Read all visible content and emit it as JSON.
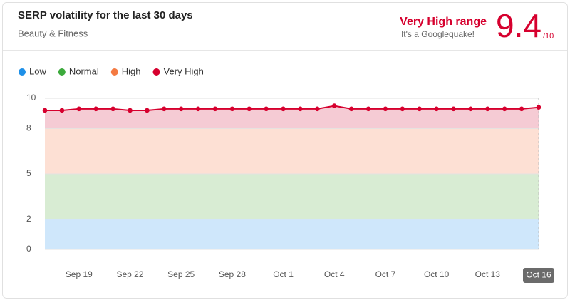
{
  "chart_data": {
    "type": "line",
    "title": "SERP volatility for the last 30 days",
    "subtitle": "Beauty & Fitness",
    "range_label": "Very High range",
    "note": "It's a Googlequake!",
    "score": "9.4",
    "score_suffix": "/10",
    "bands": [
      {
        "name": "Low",
        "legend_color": "#1e90e8",
        "color": "#cfe7fb",
        "min": 0,
        "max": 2
      },
      {
        "name": "Normal",
        "legend_color": "#3caa3c",
        "color": "#d8ecd3",
        "min": 2,
        "max": 5
      },
      {
        "name": "High",
        "legend_color": "#f47a42",
        "color": "#fde0d4",
        "min": 5,
        "max": 8
      },
      {
        "name": "Very High",
        "legend_color": "#d6002e",
        "color": "#f5cbd4",
        "min": 8
      }
    ],
    "categories": [
      null,
      null,
      "Sep 19",
      null,
      null,
      "Sep 22",
      null,
      null,
      "Sep 25",
      null,
      null,
      "Sep 28",
      null,
      null,
      "Oct 1",
      null,
      null,
      "Oct 4",
      null,
      null,
      "Oct 7",
      null,
      null,
      "Oct 10",
      null,
      null,
      "Oct 13",
      null,
      null,
      "Oct 16"
    ],
    "values": [
      9.2,
      9.2,
      9.3,
      9.3,
      9.3,
      9.2,
      9.2,
      9.3,
      9.3,
      9.3,
      9.3,
      9.3,
      9.3,
      9.3,
      9.3,
      9.3,
      9.3,
      9.5,
      9.3,
      9.3,
      9.3,
      9.3,
      9.3,
      9.3,
      9.3,
      9.3,
      9.3,
      9.3,
      9.3,
      9.4
    ],
    "color": "#d6002e",
    "ylim": [
      0,
      10
    ],
    "yticks": [
      0,
      2,
      5,
      8,
      10
    ]
  }
}
